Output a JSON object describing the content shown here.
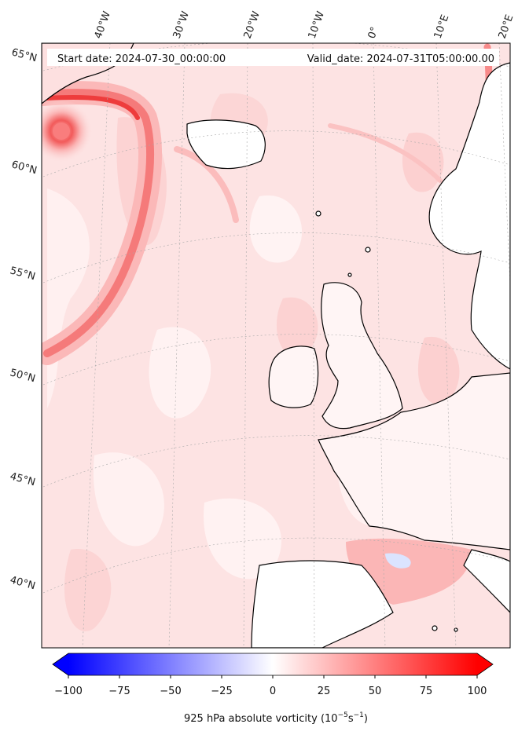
{
  "header": {
    "start_date": "Start date: 2024-07-30_00:00:00",
    "valid_date": "Valid_date: 2024-07-31T05:00:00.00"
  },
  "axes": {
    "lon_labels": [
      "40°W",
      "30°W",
      "20°W",
      "10°W",
      "0°",
      "10°E",
      "20°E"
    ],
    "lat_labels": [
      "65°N",
      "60°N",
      "55°N",
      "50°N",
      "45°N",
      "40°N"
    ]
  },
  "colorbar": {
    "ticks": [
      "−100",
      "−75",
      "−50",
      "−25",
      "0",
      "25",
      "50",
      "75",
      "100"
    ],
    "label": "925 hPa absolute vorticity (10",
    "label_exp1": "−5",
    "label_mid": "s",
    "label_exp2": "−1",
    "label_end": ")",
    "colors": {
      "neg": "#0000ff",
      "zero": "#ffffff",
      "pos": "#ff0000"
    }
  },
  "colors": {
    "field_base": "#fde3e3",
    "field_light": "#fff3f3",
    "field_mid": "#fcc8c8",
    "field_strong": "#f56d6d",
    "coast": "#000000",
    "grid": "#aaaaaa"
  }
}
